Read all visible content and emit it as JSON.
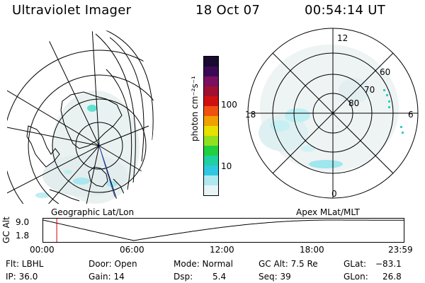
{
  "header": {
    "title": "Ultraviolet Imager",
    "date": "18 Oct 07",
    "time": "00:54:14 UT"
  },
  "left_panel": {
    "label": "Geographic Lat/Lon"
  },
  "right_panel": {
    "label": "Apex MLat/MLT",
    "mlt_labels": {
      "top": "12",
      "left": "18",
      "right": "6",
      "bottom": "0"
    },
    "lat_labels": [
      "60",
      "70",
      "80"
    ]
  },
  "colorbar": {
    "unit_label": "photon cm⁻²s⁻¹",
    "ticks": [
      "100",
      "10"
    ],
    "colors": [
      "#1a0a30",
      "#3a0a55",
      "#7a1060",
      "#a01030",
      "#d01010",
      "#f05010",
      "#f0a000",
      "#e8e000",
      "#90e020",
      "#20d040",
      "#20d0a0",
      "#30c8e0",
      "#b0e8f0",
      "#e8f4f6"
    ]
  },
  "timeline": {
    "ylabel": "GC Alt",
    "yticks": [
      "9.0",
      "1.8"
    ],
    "xticks": [
      "00:00",
      "06:00",
      "12:00",
      "18:00",
      "23:59"
    ],
    "current_time": "00:54",
    "marker_color": "#d00000"
  },
  "footer": {
    "flt": "Flt: LBHL",
    "ip": "IP: 36.0",
    "door": "Door: Open",
    "gain": "Gain: 14",
    "mode": "Mode: Normal",
    "dsp_label": "Dsp:",
    "dsp_value": "5.4",
    "gcalt": "GC Alt: 7.5 Re",
    "seq": "Seq: 39",
    "glat_label": "GLat:",
    "glat_value": "−83.1",
    "glon_label": "GLon:",
    "glon_value": "26.8"
  }
}
